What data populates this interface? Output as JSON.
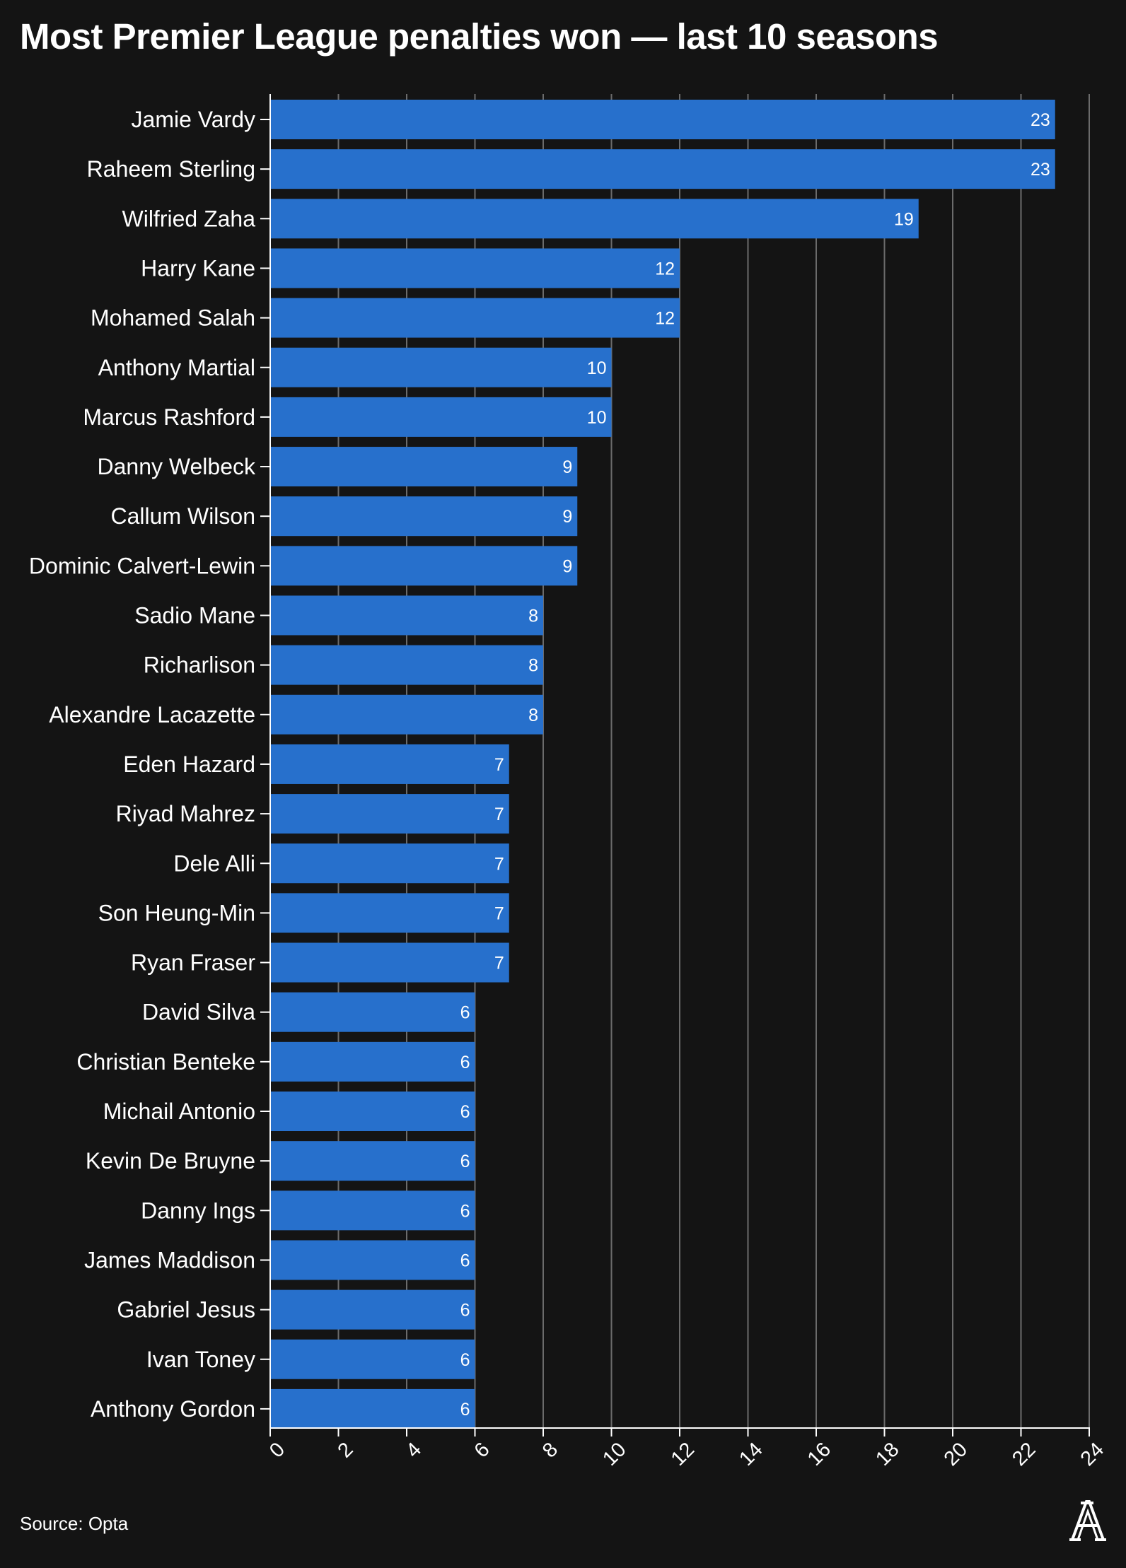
{
  "chart_data": {
    "type": "bar",
    "orientation": "horizontal",
    "title": "Most Premier League penalties won — last 10 seasons",
    "source": "Source: Opta",
    "categories": [
      "Jamie Vardy",
      "Raheem Sterling",
      "Wilfried Zaha",
      "Harry Kane",
      "Mohamed Salah",
      "Anthony Martial",
      "Marcus Rashford",
      "Danny Welbeck",
      "Callum Wilson",
      "Dominic Calvert-Lewin",
      "Sadio Mane",
      "Richarlison",
      "Alexandre Lacazette",
      "Eden Hazard",
      "Riyad Mahrez",
      "Dele Alli",
      "Son Heung-Min",
      "Ryan Fraser",
      "David Silva",
      "Christian Benteke",
      "Michail Antonio",
      "Kevin De Bruyne",
      "Danny Ings",
      "James Maddison",
      "Gabriel Jesus",
      "Ivan Toney",
      "Anthony Gordon"
    ],
    "values": [
      23,
      23,
      19,
      12,
      12,
      10,
      10,
      9,
      9,
      9,
      8,
      8,
      8,
      7,
      7,
      7,
      7,
      7,
      6,
      6,
      6,
      6,
      6,
      6,
      6,
      6,
      6
    ],
    "xlim": [
      0,
      24
    ],
    "xticks": [
      0,
      2,
      4,
      6,
      8,
      10,
      12,
      14,
      16,
      18,
      20,
      22,
      24
    ],
    "xlabel": "",
    "ylabel": "",
    "grid": true,
    "bar_color": "#2770cc",
    "background_color": "#141414",
    "grid_color": "#6b6b6b"
  },
  "logo": {
    "name": "the-athletic-logo"
  }
}
